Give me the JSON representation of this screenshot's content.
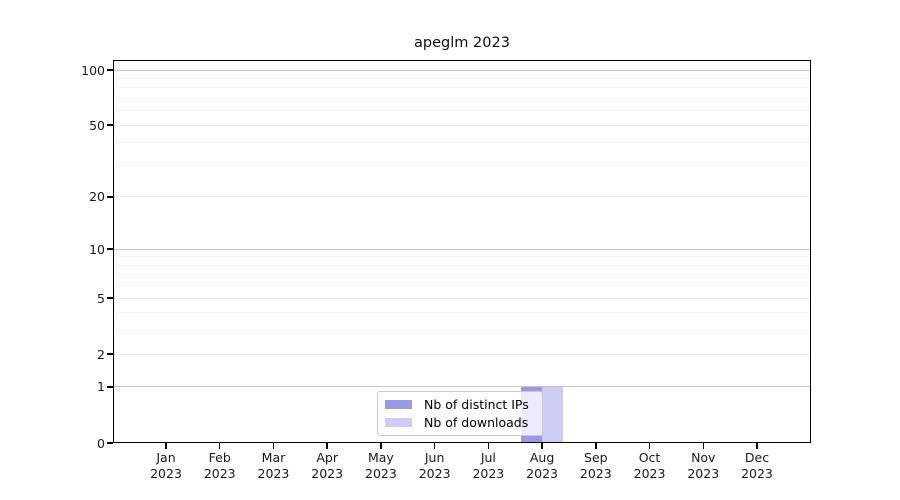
{
  "figure": {
    "background": "#ffffff",
    "axis_color": "#000000"
  },
  "chart_data": {
    "type": "bar",
    "title": "apeglm 2023",
    "categories": [
      "Jan",
      "Feb",
      "Mar",
      "Apr",
      "May",
      "Jun",
      "Jul",
      "Aug",
      "Sep",
      "Oct",
      "Nov",
      "Dec"
    ],
    "x_year": "2023",
    "series": [
      {
        "name": "Nb of distinct IPs",
        "color": "#9999e8",
        "values": [
          0,
          0,
          0,
          0,
          0,
          0,
          0,
          1,
          0,
          0,
          0,
          0
        ]
      },
      {
        "name": "Nb of downloads",
        "color": "#ccccf4",
        "values": [
          0,
          0,
          0,
          0,
          0,
          0,
          0,
          1,
          0,
          0,
          0,
          0
        ]
      }
    ],
    "xlabel": "",
    "ylabel": "",
    "yscale": "log1p",
    "ylim": [
      0,
      115
    ],
    "y_ticks": [
      0,
      1,
      2,
      5,
      10,
      20,
      50,
      100
    ],
    "y_minor_ticks": [
      3,
      4,
      6,
      7,
      8,
      9,
      30,
      40,
      60,
      70,
      80,
      90
    ],
    "grid": true,
    "grid_major_color": "#c8c8c8",
    "grid_mid_color": "#ededed",
    "grid_minor_color": "#f2f2f2",
    "legend_position": "lower center"
  }
}
